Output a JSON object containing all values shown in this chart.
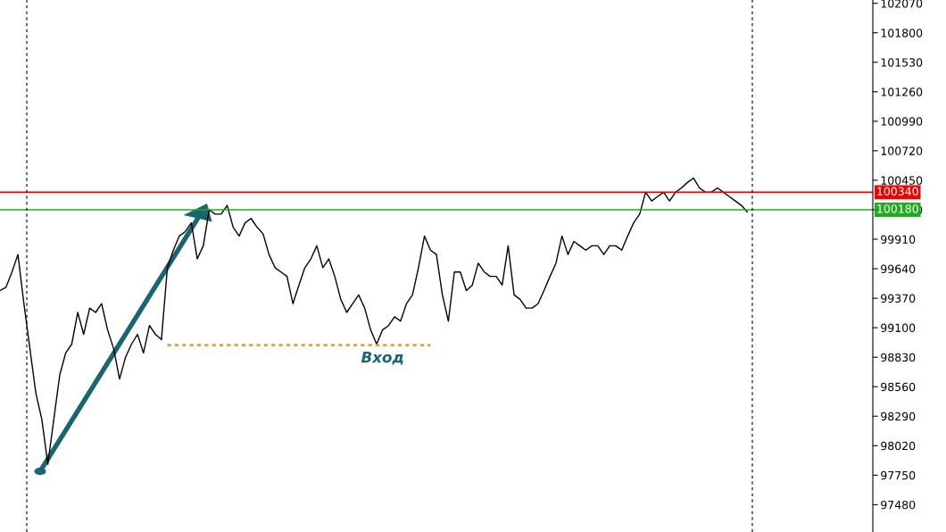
{
  "chart_data": {
    "type": "line",
    "tick_labels": "y",
    "grid": false,
    "legend": false,
    "marker": "none",
    "ylim": [
      97230,
      102100
    ],
    "yticks": [
      97480,
      97750,
      98020,
      98290,
      98560,
      98830,
      99100,
      99370,
      99640,
      99910,
      100180,
      100450,
      100720,
      100990,
      101260,
      101530,
      101800,
      102070
    ],
    "categories": [
      null,
      null,
      null,
      null,
      null,
      null,
      null,
      null,
      null,
      null,
      null,
      null,
      null,
      null,
      null,
      null,
      null,
      null,
      null,
      null,
      null,
      null,
      null,
      null,
      null,
      null,
      null,
      null,
      null,
      null,
      null,
      null,
      null,
      null,
      null,
      null,
      null,
      null,
      null,
      null,
      null,
      null,
      null,
      null,
      null,
      null,
      null,
      null,
      null,
      null,
      null,
      null,
      null,
      null,
      null,
      null,
      null,
      null,
      null,
      null,
      null,
      null,
      null,
      null,
      null,
      null,
      null,
      null,
      null,
      null,
      null,
      null,
      null,
      null,
      null,
      null,
      null,
      null,
      null,
      null,
      null,
      null,
      null,
      null,
      null,
      null,
      null,
      null,
      null,
      null,
      null,
      null,
      null,
      null,
      null,
      null,
      null,
      null,
      null,
      null,
      null,
      null,
      null,
      null,
      null,
      null,
      null,
      null,
      null,
      null,
      null,
      null,
      null,
      null,
      null,
      null,
      null,
      null,
      null,
      null,
      null,
      null,
      null,
      null,
      null,
      null,
      null,
      null,
      null,
      null,
      null,
      null,
      null,
      null,
      null,
      null,
      null,
      null,
      null,
      null,
      null,
      null,
      null,
      null,
      null,
      null,
      null
    ],
    "series": [
      {
        "color": "#000000",
        "line_style": "solid",
        "values": [
          99440,
          99470,
          99610,
          99770,
          99320,
          98910,
          98500,
          98260,
          97850,
          98260,
          98670,
          98870,
          98950,
          99240,
          99040,
          99280,
          99240,
          99320,
          99080,
          98910,
          98630,
          98830,
          98950,
          99040,
          98870,
          99120,
          99040,
          98990,
          99650,
          99810,
          99940,
          99980,
          100060,
          99730,
          99850,
          100180,
          100140,
          100140,
          100220,
          100020,
          99940,
          100060,
          100100,
          100020,
          99960,
          99770,
          99650,
          99610,
          99570,
          99320,
          99490,
          99650,
          99730,
          99850,
          99650,
          99730,
          99570,
          99360,
          99240,
          99320,
          99400,
          99280,
          99080,
          98950,
          99080,
          99120,
          99200,
          99160,
          99320,
          99400,
          99650,
          99940,
          99810,
          99770,
          99400,
          99160,
          99610,
          99610,
          99440,
          99490,
          99690,
          99610,
          99570,
          99570,
          99490,
          99850,
          99400,
          99360,
          99280,
          99280,
          99320,
          99440,
          99570,
          99690,
          99940,
          99770,
          99890,
          99850,
          99810,
          99850,
          99850,
          99770,
          99850,
          99850,
          99810,
          99940,
          100060,
          100140,
          100340,
          100260,
          100300,
          100340,
          100260,
          100340,
          100380,
          100430,
          100470,
          100380,
          100340,
          100340,
          100380,
          100340,
          100300,
          100260,
          100220,
          100160,
          null,
          null,
          null,
          null,
          null,
          null,
          null,
          null,
          null,
          null,
          null,
          null,
          null,
          null,
          null,
          null,
          null,
          null,
          null,
          null,
          null
        ]
      },
      {
        "color": "#e0a040",
        "line_style": "dotted",
        "values": [
          null,
          null,
          null,
          null,
          null,
          null,
          null,
          null,
          null,
          null,
          null,
          null,
          null,
          null,
          null,
          null,
          null,
          null,
          null,
          null,
          null,
          null,
          null,
          null,
          null,
          null,
          null,
          null,
          98940,
          98940,
          98940,
          98940,
          98940,
          98940,
          98940,
          98940,
          98940,
          98940,
          98940,
          98940,
          98940,
          98940,
          98940,
          98940,
          98940,
          98940,
          98940,
          98940,
          98940,
          98940,
          98940,
          98940,
          98940,
          98940,
          98940,
          98940,
          98940,
          98940,
          98940,
          98940,
          98940,
          98940,
          98940,
          98940,
          98940,
          98940,
          98940,
          98940,
          98940,
          98940,
          98940,
          98940,
          98940,
          null,
          null,
          null,
          null,
          null,
          null,
          null,
          null,
          null,
          null,
          null,
          null,
          null,
          null,
          null,
          null,
          null,
          null,
          null,
          null,
          null,
          null,
          null,
          null,
          null,
          null,
          null,
          null,
          null,
          null,
          null,
          null,
          null,
          null,
          null,
          null,
          null,
          null,
          null,
          null,
          null,
          null,
          null,
          null,
          null,
          null,
          null,
          null,
          null,
          null,
          null,
          null,
          null,
          null,
          null,
          null,
          null,
          null,
          null,
          null,
          null,
          null,
          null,
          null,
          null,
          null,
          null,
          null,
          null,
          null,
          null,
          null,
          null,
          null
        ]
      }
    ],
    "ref_lines": [
      {
        "axis": "y",
        "value": 100340,
        "label": "100340",
        "color": "#ee0000",
        "line_style": "solid"
      },
      {
        "axis": "y",
        "value": 100180,
        "label": "100180",
        "color": "#22aa22",
        "line_style": "solid"
      }
    ],
    "annotations": [
      "Вход"
    ]
  }
}
